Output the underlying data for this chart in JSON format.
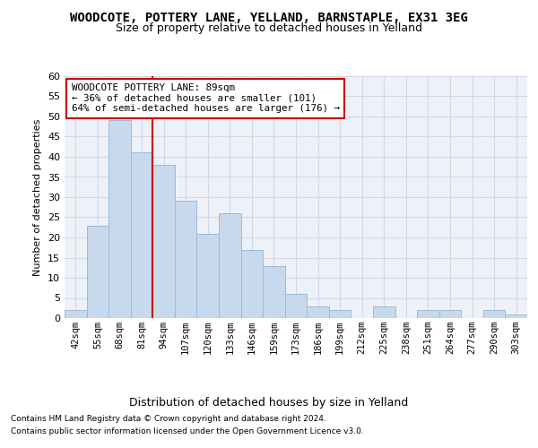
{
  "title": "WOODCOTE, POTTERY LANE, YELLAND, BARNSTAPLE, EX31 3EG",
  "subtitle": "Size of property relative to detached houses in Yelland",
  "xlabel": "Distribution of detached houses by size in Yelland",
  "ylabel": "Number of detached properties",
  "bar_labels": [
    "42sqm",
    "55sqm",
    "68sqm",
    "81sqm",
    "94sqm",
    "107sqm",
    "120sqm",
    "133sqm",
    "146sqm",
    "159sqm",
    "173sqm",
    "186sqm",
    "199sqm",
    "212sqm",
    "225sqm",
    "238sqm",
    "251sqm",
    "264sqm",
    "277sqm",
    "290sqm",
    "303sqm"
  ],
  "bar_values": [
    2,
    23,
    49,
    41,
    38,
    29,
    21,
    26,
    17,
    13,
    6,
    3,
    2,
    0,
    3,
    0,
    2,
    2,
    0,
    2,
    1
  ],
  "bar_color": "#c7d9ed",
  "bar_edge_color": "#a0b8d8",
  "grid_color": "#d0d8e8",
  "background_color": "#eef2f8",
  "vline_color": "#cc0000",
  "annotation_text": "WOODCOTE POTTERY LANE: 89sqm\n← 36% of detached houses are smaller (101)\n64% of semi-detached houses are larger (176) →",
  "annotation_box_color": "#ffffff",
  "annotation_box_edge_color": "#cc0000",
  "ylim": [
    0,
    60
  ],
  "yticks": [
    0,
    5,
    10,
    15,
    20,
    25,
    30,
    35,
    40,
    45,
    50,
    55,
    60
  ],
  "footer_line1": "Contains HM Land Registry data © Crown copyright and database right 2024.",
  "footer_line2": "Contains public sector information licensed under the Open Government Licence v3.0."
}
